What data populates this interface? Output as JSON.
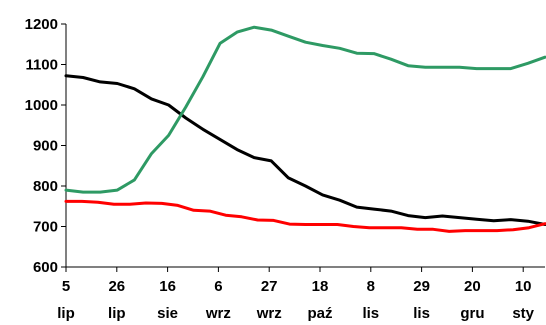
{
  "chart_data": {
    "type": "line",
    "title": "",
    "xlabel": "",
    "ylabel": "",
    "ylim": [
      600,
      1200
    ],
    "yticks": [
      600,
      700,
      800,
      900,
      1000,
      1100,
      1200
    ],
    "grid": false,
    "legend": "none",
    "x_ticks": [
      {
        "top": "5",
        "bottom": "lip"
      },
      {
        "top": "26",
        "bottom": "lip"
      },
      {
        "top": "16",
        "bottom": "sie"
      },
      {
        "top": "6",
        "bottom": "wrz"
      },
      {
        "top": "27",
        "bottom": "wrz"
      },
      {
        "top": "18",
        "bottom": "paź"
      },
      {
        "top": "8",
        "bottom": "lis"
      },
      {
        "top": "29",
        "bottom": "lis"
      },
      {
        "top": "20",
        "bottom": "gru"
      },
      {
        "top": "10",
        "bottom": "sty"
      }
    ],
    "series": [
      {
        "color": "#000000",
        "values": [
          1072,
          1068,
          1057,
          1053,
          1040,
          1015,
          1000,
          968,
          940,
          915,
          890,
          870,
          862,
          820,
          800,
          778,
          765,
          748,
          743,
          738,
          727,
          722,
          726,
          722,
          718,
          714,
          717,
          713,
          705
        ]
      },
      {
        "color": "#2e9a64",
        "values": [
          790,
          785,
          785,
          790,
          815,
          880,
          925,
          995,
          1070,
          1152,
          1180,
          1192,
          1185,
          1170,
          1155,
          1147,
          1140,
          1128,
          1127,
          1113,
          1097,
          1093,
          1093,
          1093,
          1090,
          1090,
          1090,
          1103,
          1118
        ]
      },
      {
        "color": "#ff0000",
        "values": [
          762,
          762,
          760,
          755,
          755,
          758,
          757,
          752,
          740,
          738,
          728,
          724,
          716,
          715,
          706,
          705,
          705,
          705,
          700,
          697,
          697,
          697,
          693,
          693,
          688,
          690,
          690,
          690,
          692,
          697,
          707
        ]
      }
    ]
  }
}
